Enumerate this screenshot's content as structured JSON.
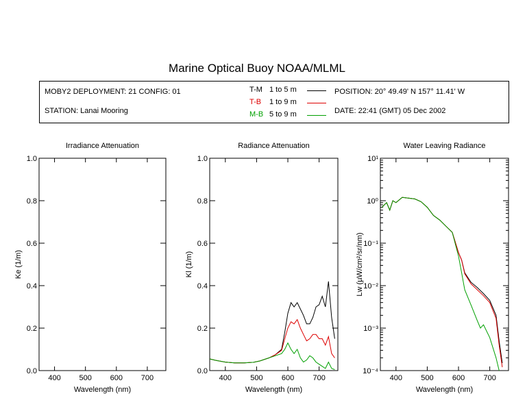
{
  "title": "Marine Optical Buoy NOAA/MLML",
  "info": {
    "deployment": "MOBY2 DEPLOYMENT: 21 CONFIG: 01",
    "station": "STATION: Lanai Mooring",
    "position": "POSITION: 20° 49.49' N   157° 11.41' W",
    "date": "DATE: 22:41 (GMT) 05 Dec 2002",
    "legend": [
      {
        "name": "T-M",
        "range": "1 to 5  m",
        "color": "#000000"
      },
      {
        "name": "T-B",
        "range": "1 to 9  m",
        "color": "#dd0000"
      },
      {
        "name": "M-B",
        "range": "5 to 9  m",
        "color": "#00a000"
      }
    ]
  },
  "chart_data": [
    {
      "type": "line",
      "title": "Irradiance Attenuation",
      "xlabel": "Wavelength (nm)",
      "ylabel": "Ke  (1/m)",
      "xlim": [
        350,
        760
      ],
      "ylim": [
        0,
        1.0
      ],
      "x_ticks": [
        "400",
        "500",
        "600",
        "700"
      ],
      "y_ticks": [
        "0.0",
        "0.2",
        "0.4",
        "0.6",
        "0.8",
        "1.0"
      ],
      "series": []
    },
    {
      "type": "line",
      "title": "Radiance Attenuation",
      "xlabel": "Wavelength (nm)",
      "ylabel": "Kl  (1/m)",
      "xlim": [
        350,
        760
      ],
      "ylim": [
        0,
        1.0
      ],
      "x_ticks": [
        "400",
        "500",
        "600",
        "700"
      ],
      "y_ticks": [
        "0.0",
        "0.2",
        "0.4",
        "0.6",
        "0.8",
        "1.0"
      ],
      "series": [
        {
          "color": "#000000",
          "x": [
            350,
            370,
            400,
            430,
            460,
            490,
            510,
            540,
            560,
            580,
            590,
            600,
            610,
            620,
            630,
            640,
            650,
            660,
            670,
            680,
            690,
            700,
            710,
            720,
            730,
            740,
            750
          ],
          "y": [
            0.055,
            0.048,
            0.04,
            0.036,
            0.036,
            0.039,
            0.045,
            0.06,
            0.075,
            0.1,
            0.18,
            0.27,
            0.32,
            0.3,
            0.32,
            0.29,
            0.26,
            0.22,
            0.22,
            0.25,
            0.3,
            0.31,
            0.35,
            0.3,
            0.42,
            0.25,
            0.15
          ]
        },
        {
          "color": "#dd0000",
          "x": [
            350,
            370,
            400,
            430,
            460,
            490,
            510,
            540,
            560,
            580,
            590,
            600,
            610,
            620,
            630,
            640,
            650,
            660,
            670,
            680,
            690,
            700,
            710,
            720,
            730,
            740,
            750
          ],
          "y": [
            0.055,
            0.048,
            0.04,
            0.036,
            0.036,
            0.039,
            0.045,
            0.06,
            0.075,
            0.095,
            0.15,
            0.2,
            0.23,
            0.22,
            0.24,
            0.2,
            0.17,
            0.14,
            0.15,
            0.17,
            0.17,
            0.15,
            0.15,
            0.12,
            0.16,
            0.08,
            0.06
          ]
        },
        {
          "color": "#00a000",
          "x": [
            350,
            370,
            400,
            430,
            460,
            490,
            510,
            540,
            560,
            580,
            590,
            600,
            610,
            620,
            630,
            640,
            650,
            660,
            670,
            680,
            690,
            700,
            710,
            720,
            730,
            740,
            750
          ],
          "y": [
            0.055,
            0.048,
            0.04,
            0.036,
            0.036,
            0.039,
            0.045,
            0.06,
            0.07,
            0.08,
            0.1,
            0.13,
            0.1,
            0.08,
            0.1,
            0.06,
            0.04,
            0.05,
            0.07,
            0.06,
            0.04,
            0.03,
            0.02,
            0.01,
            0.04,
            0.01,
            0.005
          ]
        }
      ]
    },
    {
      "type": "line",
      "title": "Water Leaving Radiance",
      "xlabel": "Wavelength (nm)",
      "ylabel": "Lw  (µW/cm²/sr/nm)",
      "xlim": [
        350,
        760
      ],
      "ylim": [
        0.0001,
        10
      ],
      "yscale": "log",
      "x_ticks": [
        "400",
        "500",
        "600",
        "700"
      ],
      "y_ticks": [
        "10¹",
        "10⁰",
        "10⁻¹",
        "10⁻²",
        "10⁻³",
        "10⁻⁴"
      ],
      "series": [
        {
          "color": "#000000",
          "x": [
            355,
            370,
            380,
            390,
            400,
            420,
            440,
            460,
            480,
            500,
            520,
            540,
            560,
            580,
            600,
            610,
            620,
            640,
            660,
            680,
            700,
            720,
            730,
            740
          ],
          "y": [
            0.7,
            0.9,
            0.6,
            1.0,
            0.9,
            1.2,
            1.15,
            1.1,
            0.95,
            0.7,
            0.45,
            0.35,
            0.25,
            0.18,
            0.06,
            0.04,
            0.02,
            0.012,
            0.009,
            0.0065,
            0.0045,
            0.002,
            0.0005,
            0.00015
          ]
        },
        {
          "color": "#dd0000",
          "x": [
            355,
            370,
            380,
            390,
            400,
            420,
            440,
            460,
            480,
            500,
            520,
            540,
            560,
            580,
            600,
            610,
            620,
            640,
            660,
            680,
            700,
            720,
            730,
            740
          ],
          "y": [
            0.7,
            0.9,
            0.6,
            1.0,
            0.9,
            1.2,
            1.15,
            1.1,
            0.95,
            0.7,
            0.45,
            0.35,
            0.25,
            0.18,
            0.06,
            0.04,
            0.019,
            0.011,
            0.008,
            0.0058,
            0.004,
            0.0017,
            0.0004,
            0.00012
          ]
        },
        {
          "color": "#00a000",
          "x": [
            355,
            370,
            380,
            390,
            400,
            420,
            440,
            460,
            480,
            500,
            520,
            540,
            560,
            580,
            600,
            610,
            620,
            640,
            660,
            670,
            680,
            700,
            720,
            730
          ],
          "y": [
            0.7,
            0.9,
            0.6,
            1.0,
            0.9,
            1.2,
            1.15,
            1.1,
            0.95,
            0.7,
            0.45,
            0.35,
            0.25,
            0.18,
            0.05,
            0.02,
            0.008,
            0.0035,
            0.0015,
            0.001,
            0.0012,
            0.0006,
            0.0002,
            0.0001
          ]
        }
      ]
    }
  ]
}
